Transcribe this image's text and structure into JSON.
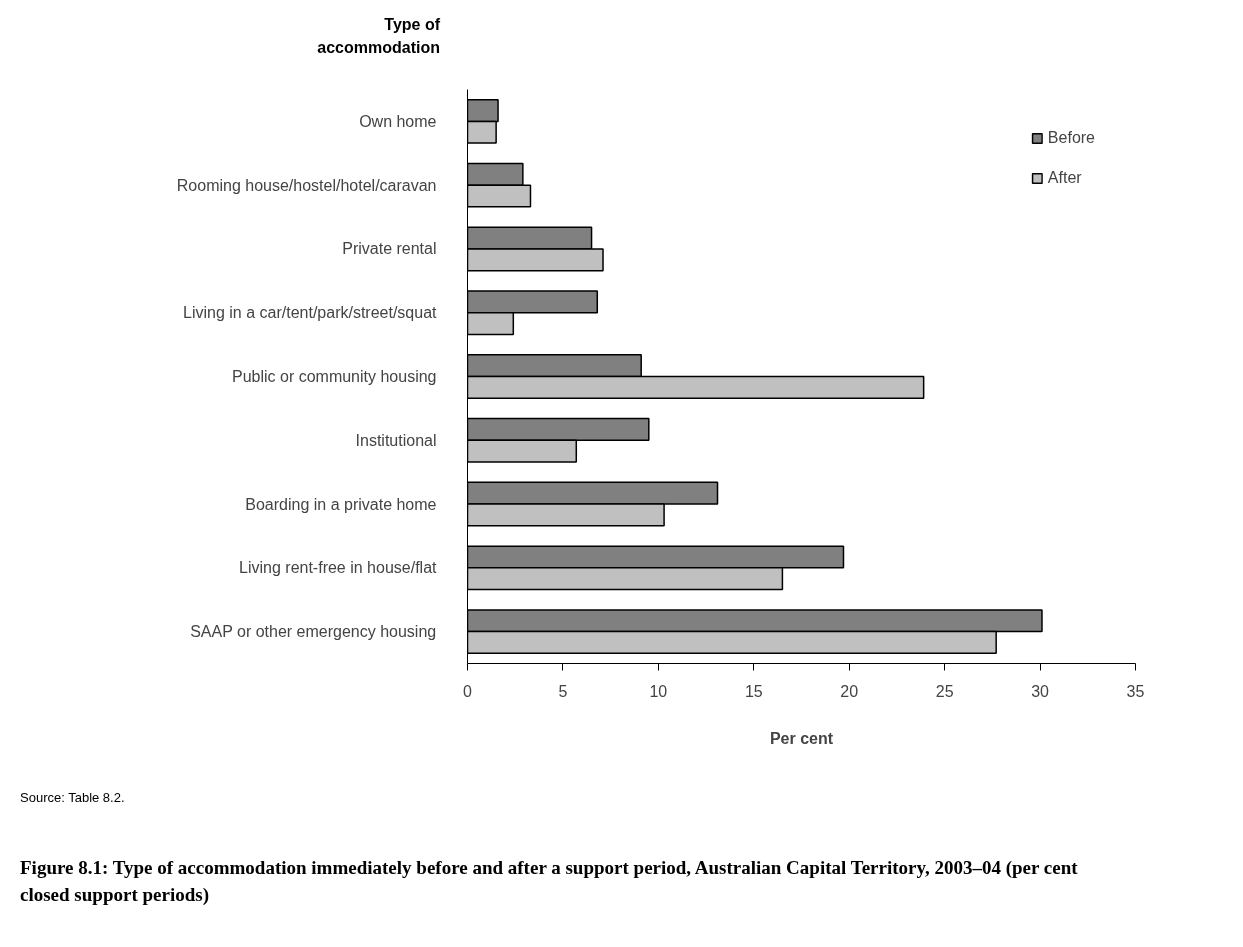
{
  "chart_data": {
    "type": "bar",
    "orientation": "horizontal",
    "title": "Figure 8.1: Type of accommodation immediately before and after a support period, Australian Capital Territory, 2003–04 (per cent closed support periods)",
    "ylabel": "Type of accommodation",
    "xlabel": "Per cent",
    "categories": [
      "Own home",
      "Rooming house/hostel/hotel/caravan",
      "Private rental",
      "Living in a car/tent/park/street/squat",
      "Public or community housing",
      "Institutional",
      "Boarding in a private home",
      "Living rent-free in house/flat",
      "SAAP or other emergency housing"
    ],
    "series": [
      {
        "name": "Before",
        "color": "#808080",
        "values": [
          1.6,
          2.9,
          6.5,
          6.8,
          9.1,
          9.5,
          13.1,
          19.7,
          30.1
        ]
      },
      {
        "name": "After",
        "color": "#c0c0c0",
        "values": [
          1.5,
          3.3,
          7.1,
          2.4,
          23.9,
          5.7,
          10.3,
          16.5,
          27.7
        ]
      }
    ],
    "xlim": [
      0,
      35
    ],
    "xticks": [
      0,
      5,
      10,
      15,
      20,
      25,
      30,
      35
    ],
    "legend": "top right",
    "grid": false,
    "annotations": [
      "Source: Table 8.2."
    ]
  }
}
